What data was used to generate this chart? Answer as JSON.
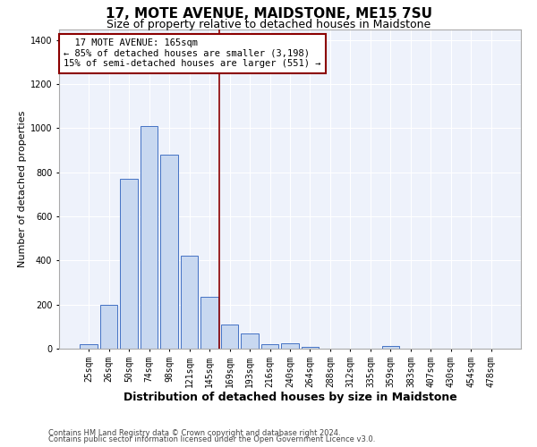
{
  "title": "17, MOTE AVENUE, MAIDSTONE, ME15 7SU",
  "subtitle": "Size of property relative to detached houses in Maidstone",
  "xlabel": "Distribution of detached houses by size in Maidstone",
  "ylabel": "Number of detached properties",
  "footnote1": "Contains HM Land Registry data © Crown copyright and database right 2024.",
  "footnote2": "Contains public sector information licensed under the Open Government Licence v3.0.",
  "categories": [
    "25sqm",
    "26sqm",
    "50sqm",
    "74sqm",
    "98sqm",
    "121sqm",
    "145sqm",
    "169sqm",
    "193sqm",
    "216sqm",
    "240sqm",
    "264sqm",
    "288sqm",
    "312sqm",
    "335sqm",
    "359sqm",
    "383sqm",
    "407sqm",
    "430sqm",
    "454sqm",
    "478sqm"
  ],
  "values": [
    20,
    200,
    770,
    1010,
    880,
    420,
    235,
    108,
    68,
    20,
    25,
    10,
    0,
    0,
    0,
    12,
    0,
    0,
    0,
    0,
    0
  ],
  "bar_color": "#c8d8f0",
  "bar_edge_color": "#4472c4",
  "vline_color": "#8b0000",
  "annotation_text": "  17 MOTE AVENUE: 165sqm\n← 85% of detached houses are smaller (3,198)\n15% of semi-detached houses are larger (551) →",
  "annotation_box_color": "#8b0000",
  "ylim": [
    0,
    1450
  ],
  "yticks": [
    0,
    200,
    400,
    600,
    800,
    1000,
    1200,
    1400
  ],
  "background_color": "#eef2fb",
  "grid_color": "#ffffff",
  "title_fontsize": 11,
  "subtitle_fontsize": 9,
  "annot_fontsize": 7.5,
  "xlabel_fontsize": 9,
  "ylabel_fontsize": 8,
  "tick_fontsize": 7,
  "footnote_fontsize": 6
}
